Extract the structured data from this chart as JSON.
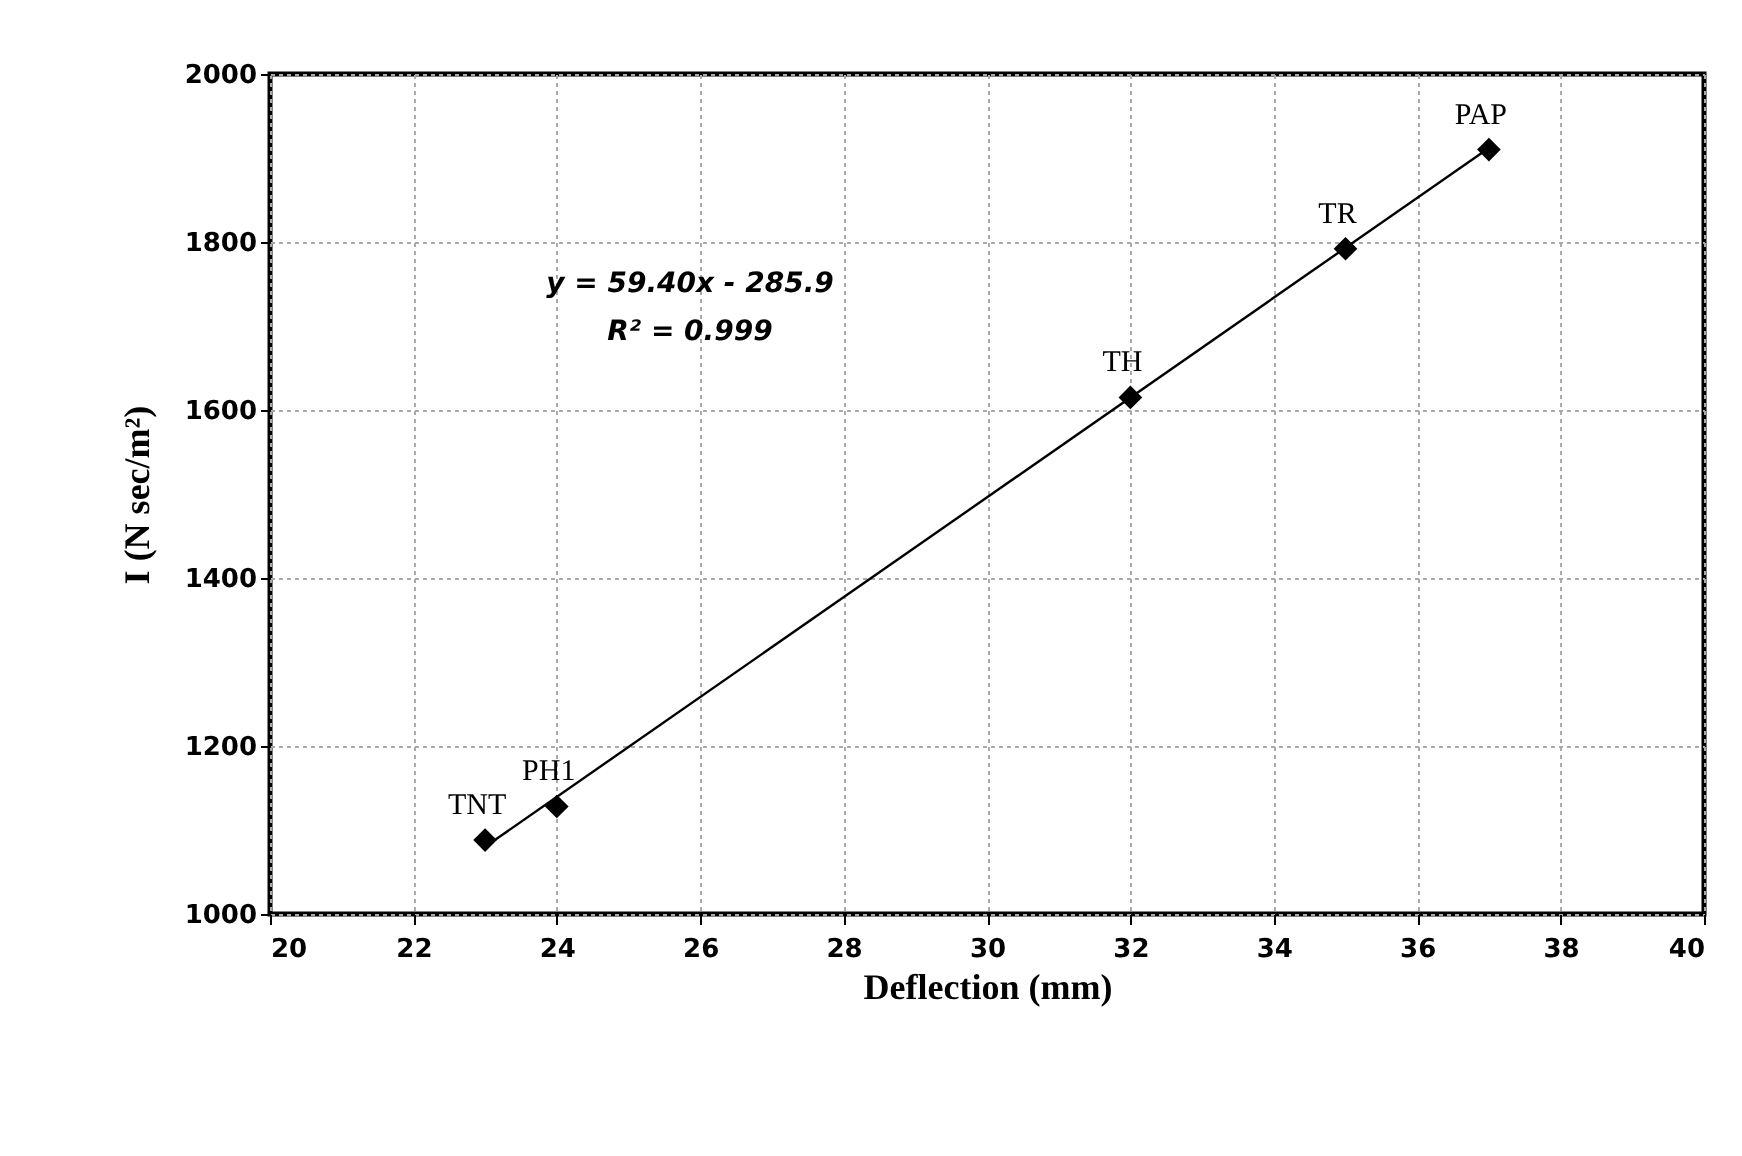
{
  "chart_data": {
    "type": "scatter",
    "xlabel": "Deflection (mm)",
    "ylabel": "I  (N sec/m²)",
    "x": [
      23,
      24,
      32,
      35,
      37
    ],
    "series": [
      {
        "color": "#000000",
        "values": [
          1088,
          1128,
          1615,
          1792,
          1910
        ],
        "marker": "diamond"
      },
      {
        "type": "line",
        "color": "#000000",
        "x": [
          23,
          37
        ],
        "values": [
          1080,
          1912
        ],
        "marker": "none"
      }
    ],
    "annotations": [
      {
        "text": "TNT",
        "x": 23,
        "y": 1088
      },
      {
        "text": "PH1",
        "x": 24,
        "y": 1128
      },
      {
        "text": "TH",
        "x": 32,
        "y": 1615
      },
      {
        "text": "TR",
        "x": 35,
        "y": 1792
      },
      {
        "text": "PAP",
        "x": 37,
        "y": 1910
      },
      "y = 59.40x - 285.9",
      "R² = 0.999"
    ],
    "xlim": [
      20,
      40
    ],
    "xticks": [
      20,
      22,
      24,
      26,
      28,
      30,
      32,
      34,
      36,
      38,
      40
    ],
    "ylim": [
      1000,
      2000
    ],
    "yticks": [
      1000,
      1200,
      1400,
      1600,
      1800,
      2000
    ],
    "grid": true
  }
}
